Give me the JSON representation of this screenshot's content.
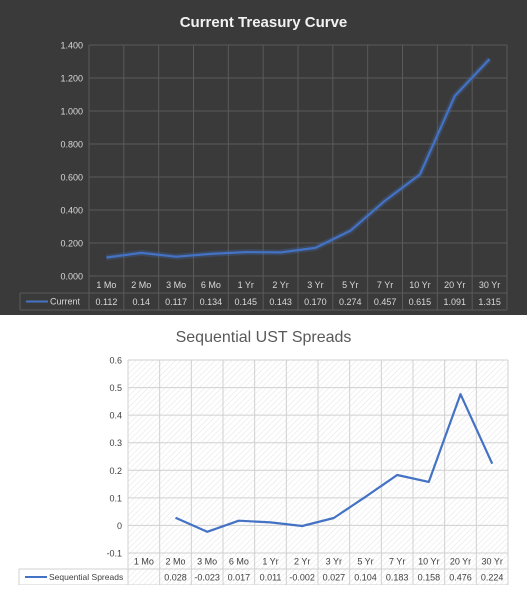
{
  "charts": [
    {
      "title": "Current Treasury Curve",
      "type": "line",
      "theme": {
        "background": "#3a3a3a",
        "line": "#4472c4",
        "grid": "#5a5a5a",
        "text": "#d9d9d9",
        "title": "#f2f2f2"
      },
      "y_ticks": [
        "1.400",
        "1.200",
        "1.000",
        "0.800",
        "0.600",
        "0.400",
        "0.200",
        "0.000"
      ],
      "legend_label": "Current",
      "value_labels": [
        "0.112",
        "0.14",
        "0.117",
        "0.134",
        "0.145",
        "0.143",
        "0.170",
        "0.274",
        "0.457",
        "0.615",
        "1.091",
        "1.315"
      ]
    },
    {
      "title": "Sequential UST Spreads",
      "type": "line",
      "theme": {
        "background": "#ffffff",
        "line": "#4472c4",
        "grid": "#d0d0d0",
        "text": "#404040",
        "title": "#595959"
      },
      "y_ticks": [
        "0.6",
        "0.5",
        "0.4",
        "0.3",
        "0.2",
        "0.1",
        "0",
        "-0.1"
      ],
      "legend_label": "Sequential Spreads",
      "value_labels": [
        "",
        "0.028",
        "-0.023",
        "0.017",
        "0.011",
        "-0.002",
        "0.027",
        "0.104",
        "0.183",
        "0.158",
        "0.476",
        "0.224"
      ]
    }
  ],
  "chart_data": [
    {
      "type": "line",
      "title": "Current Treasury Curve",
      "categories": [
        "1 Mo",
        "2 Mo",
        "3 Mo",
        "6 Mo",
        "1 Yr",
        "2 Yr",
        "3 Yr",
        "5 Yr",
        "7 Yr",
        "10 Yr",
        "20 Yr",
        "30 Yr"
      ],
      "series": [
        {
          "name": "Current",
          "values": [
            0.112,
            0.14,
            0.117,
            0.134,
            0.145,
            0.143,
            0.17,
            0.274,
            0.457,
            0.615,
            1.091,
            1.315
          ]
        }
      ],
      "ylim": [
        0,
        1.4
      ],
      "grid": true,
      "legend": "data-table"
    },
    {
      "type": "line",
      "title": "Sequential UST Spreads",
      "categories": [
        "1 Mo",
        "2 Mo",
        "3 Mo",
        "6 Mo",
        "1 Yr",
        "2 Yr",
        "3 Yr",
        "5 Yr",
        "7 Yr",
        "10 Yr",
        "20 Yr",
        "30 Yr"
      ],
      "series": [
        {
          "name": "Sequential Spreads",
          "values": [
            null,
            0.028,
            -0.023,
            0.017,
            0.011,
            -0.002,
            0.027,
            0.104,
            0.183,
            0.158,
            0.476,
            0.224
          ]
        }
      ],
      "ylim": [
        -0.1,
        0.6
      ],
      "grid": true,
      "legend": "data-table"
    }
  ]
}
